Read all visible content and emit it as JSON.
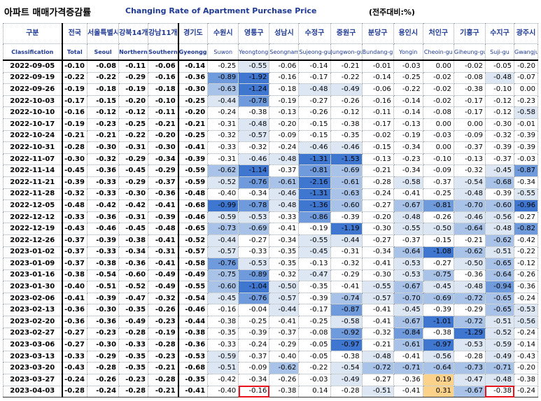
{
  "title": {
    "korean": "아파트 매매가격증감률",
    "english": "Changing Rate of Apartment Purchase Price",
    "unit": "(전주대비:%)"
  },
  "columns": [
    {
      "key": "classification",
      "kr": "구분",
      "en": "Classification"
    },
    {
      "key": "total",
      "kr": "전국",
      "en": "Total"
    },
    {
      "key": "seoul",
      "kr": "서울특별시",
      "en": "Seoul"
    },
    {
      "key": "northern_seoul",
      "kr": "강북14개구",
      "en": "Northern seoul"
    },
    {
      "key": "southern_seoul",
      "kr": "강남11개구",
      "en": "Southern Seoul"
    },
    {
      "key": "gyeonggi",
      "kr": "경기도",
      "en": "Gyeonggi-do"
    },
    {
      "key": "suwon",
      "kr": "수원시",
      "en": "Suwon"
    },
    {
      "key": "yeongtong",
      "kr": "영통구",
      "en": "Yeongtong-gu"
    },
    {
      "key": "seongnam",
      "kr": "성남시",
      "en": "Seongnam"
    },
    {
      "key": "sujeong",
      "kr": "수정구",
      "en": "Sujeong-gu"
    },
    {
      "key": "jungwon",
      "kr": "중원구",
      "en": "Jungwon-gu"
    },
    {
      "key": "bundang",
      "kr": "분당구",
      "en": "Bundang-gu"
    },
    {
      "key": "yongin",
      "kr": "용인시",
      "en": "Yongin"
    },
    {
      "key": "cheoin",
      "kr": "처인구",
      "en": "Cheoin-gu"
    },
    {
      "key": "giheung",
      "kr": "기흥구",
      "en": "Giheung-gu"
    },
    {
      "key": "suji",
      "kr": "수지구",
      "en": "Suji-gu"
    },
    {
      "key": "gwangju",
      "kr": "광주시",
      "en": "Gwangju"
    }
  ],
  "rows": [
    {
      "date": "2022-09-05",
      "values": [
        "-0.10",
        "-0.08",
        "-0.11",
        "-0.06",
        "-0.14",
        "-0.25",
        "-0.55",
        "-0.06",
        "-0.14",
        "-0.21",
        "-0.01",
        "-0.03",
        "0.00",
        "-0.02",
        "-0.05",
        "-0.20"
      ]
    },
    {
      "date": "2022-09-19",
      "values": [
        "-0.22",
        "-0.22",
        "-0.29",
        "-0.16",
        "-0.36",
        "-0.89",
        "-1.92",
        "-0.16",
        "-0.17",
        "-0.22",
        "-0.14",
        "-0.25",
        "-0.02",
        "-0.08",
        "-0.48",
        "-0.07"
      ]
    },
    {
      "date": "2022-09-26",
      "values": [
        "-0.19",
        "-0.18",
        "-0.19",
        "-0.18",
        "-0.30",
        "-0.63",
        "-1.24",
        "-0.18",
        "-0.48",
        "-0.49",
        "-0.06",
        "-0.22",
        "-0.02",
        "-0.38",
        "-0.10",
        "0.00"
      ]
    },
    {
      "date": "2022-10-03",
      "values": [
        "-0.17",
        "-0.15",
        "-0.20",
        "-0.10",
        "-0.25",
        "-0.44",
        "-0.78",
        "-0.19",
        "-0.27",
        "-0.26",
        "-0.16",
        "-0.14",
        "-0.02",
        "-0.17",
        "-0.12",
        "-0.23"
      ]
    },
    {
      "date": "2022-10-10",
      "values": [
        "-0.16",
        "-0.12",
        "-0.12",
        "-0.11",
        "-0.20",
        "-0.24",
        "-0.38",
        "-0.13",
        "-0.26",
        "-0.12",
        "-0.11",
        "-0.14",
        "-0.08",
        "-0.17",
        "-0.12",
        "-0.58"
      ]
    },
    {
      "date": "2022-10-17",
      "values": [
        "-0.19",
        "-0.23",
        "-0.25",
        "-0.21",
        "-0.21",
        "-0.31",
        "-0.48",
        "-0.20",
        "-0.15",
        "-0.38",
        "-0.17",
        "-0.13",
        "0.00",
        "0.00",
        "-0.30",
        "-0.01"
      ]
    },
    {
      "date": "2022-10-24",
      "values": [
        "-0.21",
        "-0.21",
        "-0.22",
        "-0.20",
        "-0.25",
        "-0.32",
        "-0.57",
        "-0.09",
        "-0.15",
        "-0.35",
        "-0.02",
        "-0.19",
        "-0.03",
        "-0.09",
        "-0.32",
        "-0.39"
      ]
    },
    {
      "date": "2022-10-31",
      "values": [
        "-0.28",
        "-0.30",
        "-0.31",
        "-0.30",
        "-0.41",
        "-0.33",
        "-0.32",
        "-0.24",
        "-0.46",
        "-0.46",
        "-0.15",
        "-0.34",
        "0.00",
        "-0.37",
        "-0.39",
        "-0.39"
      ]
    },
    {
      "date": "2022-11-07",
      "values": [
        "-0.30",
        "-0.32",
        "-0.29",
        "-0.34",
        "-0.39",
        "-0.31",
        "-0.46",
        "-0.48",
        "-1.31",
        "-1.53",
        "-0.13",
        "-0.23",
        "-0.10",
        "-0.13",
        "-0.37",
        "-0.03"
      ]
    },
    {
      "date": "2022-11-14",
      "values": [
        "-0.45",
        "-0.36",
        "-0.45",
        "-0.29",
        "-0.59",
        "-0.62",
        "-1.14",
        "-0.37",
        "-0.81",
        "-0.69",
        "-0.21",
        "-0.34",
        "-0.09",
        "-0.32",
        "-0.45",
        "-0.87"
      ]
    },
    {
      "date": "2022-11-21",
      "values": [
        "-0.39",
        "-0.33",
        "-0.29",
        "-0.37",
        "-0.59",
        "-0.52",
        "-0.76",
        "-0.61",
        "-2.16",
        "-0.61",
        "-0.28",
        "-0.58",
        "-0.37",
        "-0.54",
        "-0.68",
        "-0.34"
      ]
    },
    {
      "date": "2022-11-28",
      "values": [
        "-0.32",
        "-0.33",
        "-0.30",
        "-0.36",
        "-0.48",
        "-0.40",
        "-0.34",
        "-0.46",
        "-1.31",
        "-0.63",
        "-0.24",
        "-0.41",
        "-0.25",
        "-0.48",
        "-0.39",
        "-0.55"
      ]
    },
    {
      "date": "2022-12-05",
      "values": [
        "-0.48",
        "-0.42",
        "-0.42",
        "-0.41",
        "-0.68",
        "-0.99",
        "-0.78",
        "-0.48",
        "-1.36",
        "-0.60",
        "-0.27",
        "-0.67",
        "-0.81",
        "-0.70",
        "-0.60",
        "-0.96"
      ]
    },
    {
      "date": "2022-12-12",
      "values": [
        "-0.33",
        "-0.36",
        "-0.31",
        "-0.39",
        "-0.46",
        "-0.59",
        "-0.53",
        "-0.33",
        "-0.86",
        "-0.39",
        "-0.20",
        "-0.48",
        "-0.26",
        "-0.46",
        "-0.56",
        "-0.27"
      ]
    },
    {
      "date": "2022-12-19",
      "values": [
        "-0.43",
        "-0.46",
        "-0.45",
        "-0.48",
        "-0.65",
        "-0.73",
        "-0.69",
        "-0.41",
        "-0.19",
        "-1.19",
        "-0.30",
        "-0.55",
        "-0.50",
        "-0.64",
        "-0.48",
        "-0.82"
      ]
    },
    {
      "date": "2022-12-26",
      "values": [
        "-0.37",
        "-0.39",
        "-0.38",
        "-0.41",
        "-0.52",
        "-0.44",
        "-0.27",
        "-0.34",
        "-0.55",
        "-0.44",
        "-0.27",
        "-0.37",
        "-0.15",
        "-0.21",
        "-0.62",
        "-0.42"
      ]
    },
    {
      "date": "2023-01-02",
      "values": [
        "-0.37",
        "-0.33",
        "-0.34",
        "-0.31",
        "-0.57",
        "-0.57",
        "-0.33",
        "-0.35",
        "-0.45",
        "-0.31",
        "-0.34",
        "-0.64",
        "-1.08",
        "-0.62",
        "-0.51",
        "-0.22"
      ]
    },
    {
      "date": "2023-01-09",
      "values": [
        "-0.37",
        "-0.38",
        "-0.36",
        "-0.41",
        "-0.58",
        "-0.76",
        "-0.53",
        "-0.35",
        "-0.13",
        "-0.32",
        "-0.41",
        "-0.53",
        "-0.27",
        "-0.50",
        "-0.65",
        "-0.12"
      ]
    },
    {
      "date": "2023-01-16",
      "values": [
        "-0.38",
        "-0.54",
        "-0.60",
        "-0.49",
        "-0.49",
        "-0.75",
        "-0.89",
        "-0.32",
        "-0.47",
        "-0.29",
        "-0.30",
        "-0.53",
        "-0.75",
        "-0.36",
        "-0.64",
        "-0.26"
      ]
    },
    {
      "date": "2023-01-30",
      "values": [
        "-0.40",
        "-0.51",
        "-0.52",
        "-0.49",
        "-0.55",
        "-0.60",
        "-1.04",
        "-0.50",
        "-0.35",
        "-0.41",
        "-0.55",
        "-0.67",
        "-0.45",
        "-0.48",
        "-0.94",
        "-0.36"
      ]
    },
    {
      "date": "2023-02-06",
      "values": [
        "-0.41",
        "-0.39",
        "-0.47",
        "-0.32",
        "-0.54",
        "-0.45",
        "-0.76",
        "-0.57",
        "-0.39",
        "-0.74",
        "-0.57",
        "-0.70",
        "-0.69",
        "-0.72",
        "-0.65",
        "-0.24"
      ]
    },
    {
      "date": "2023-02-13",
      "values": [
        "-0.36",
        "-0.30",
        "-0.35",
        "-0.26",
        "-0.46",
        "-0.16",
        "-0.04",
        "-0.44",
        "-0.17",
        "-0.87",
        "-0.41",
        "-0.45",
        "-0.39",
        "-0.29",
        "-0.65",
        "-0.53"
      ]
    },
    {
      "date": "2023-02-20",
      "values": [
        "-0.36",
        "-0.36",
        "-0.49",
        "-0.23",
        "-0.44",
        "-0.38",
        "-0.25",
        "-0.41",
        "-0.25",
        "-0.58",
        "-0.41",
        "-0.67",
        "-1.01",
        "-0.72",
        "-0.51",
        "-0.56"
      ]
    },
    {
      "date": "2023-02-27",
      "values": [
        "-0.27",
        "-0.23",
        "-0.28",
        "-0.19",
        "-0.38",
        "-0.35",
        "-0.39",
        "-0.37",
        "-0.08",
        "-0.92",
        "-0.32",
        "-0.84",
        "-0.38",
        "-1.29",
        "-0.52",
        "-0.24"
      ]
    },
    {
      "date": "2023-03-06",
      "values": [
        "-0.27",
        "-0.30",
        "-0.33",
        "-0.28",
        "-0.36",
        "-0.33",
        "-0.24",
        "-0.29",
        "-0.05",
        "-0.97",
        "-0.21",
        "-0.61",
        "-0.97",
        "-0.53",
        "-0.59",
        "-0.14"
      ]
    },
    {
      "date": "2023-03-13",
      "values": [
        "-0.33",
        "-0.29",
        "-0.35",
        "-0.23",
        "-0.53",
        "-0.59",
        "-0.37",
        "-0.40",
        "-0.05",
        "-0.38",
        "-0.48",
        "-0.41",
        "-0.56",
        "-0.28",
        "-0.49",
        "-0.43"
      ]
    },
    {
      "date": "2023-03-20",
      "values": [
        "-0.43",
        "-0.28",
        "-0.35",
        "-0.21",
        "-0.68",
        "-0.51",
        "-0.09",
        "-0.62",
        "-0.22",
        "-0.54",
        "-0.72",
        "-0.71",
        "-0.64",
        "-0.73",
        "-0.71",
        "-0.20"
      ]
    },
    {
      "date": "2023-03-27",
      "values": [
        "-0.24",
        "-0.26",
        "-0.23",
        "-0.28",
        "-0.35",
        "-0.42",
        "-0.34",
        "-0.26",
        "-0.03",
        "-0.49",
        "-0.27",
        "-0.36",
        "0.19",
        "-0.47",
        "-0.48",
        "-0.38"
      ]
    },
    {
      "date": "2023-04-03",
      "values": [
        "-0.28",
        "-0.24",
        "-0.28",
        "-0.21",
        "-0.41",
        "-0.40",
        "-0.16",
        "-0.38",
        "0.14",
        "-0.28",
        "-0.51",
        "-0.41",
        "0.31",
        "-0.67",
        "-0.38",
        "-0.24"
      ]
    }
  ],
  "highlight_colors": {
    "positive_peach": "#fcd28a",
    "blue_light": "#dde7f4",
    "blue_mid": "#a9c3e8",
    "blue_deep": "#6f9adb",
    "blue_strong": "#3f77d0",
    "outline_red": "#e8141b"
  }
}
